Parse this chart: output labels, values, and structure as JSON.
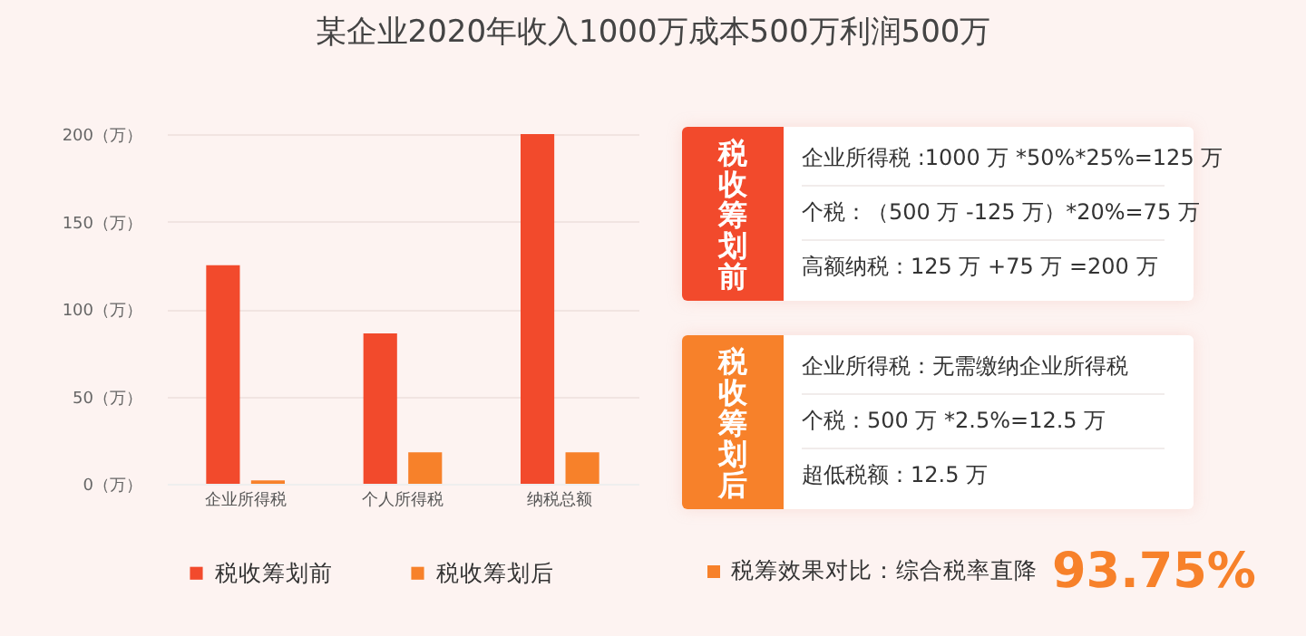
{
  "chart_data": {
    "type": "bar",
    "title": "某企业2020年收入1000万成本500万利润500万",
    "categories": [
      "企业所得税",
      "个人所得税",
      "纳税总额"
    ],
    "series": [
      {
        "name": "税收筹划前",
        "color": "#f24a2c",
        "values": [
          125,
          86,
          200
        ]
      },
      {
        "name": "税收筹划后",
        "color": "#f7812a",
        "values": [
          2,
          18,
          18
        ]
      }
    ],
    "ylim": [
      0,
      200
    ],
    "yticks": [
      {
        "value": 0,
        "label": "0（万）"
      },
      {
        "value": 50,
        "label": "50（万）"
      },
      {
        "value": 100,
        "label": "100（万）"
      },
      {
        "value": 150,
        "label": "150（万）"
      },
      {
        "value": 200,
        "label": "200（万）"
      }
    ],
    "grid": "y",
    "legend": "bottom",
    "annotations": [
      "税收筹划前",
      "企业所得税 :1000 万 *50%*25%=125 万",
      "个税：（500 万 -125 万）*20%=75 万",
      "高额纳税：125 万 +75 万 =200 万",
      "税收筹划后",
      "企业所得税：无需缴纳企业所得税",
      "个税：500 万 *2.5%=12.5 万",
      "超低税额：12.5 万",
      "税筹效果对比：综合税率直降",
      "93.75%"
    ]
  }
}
